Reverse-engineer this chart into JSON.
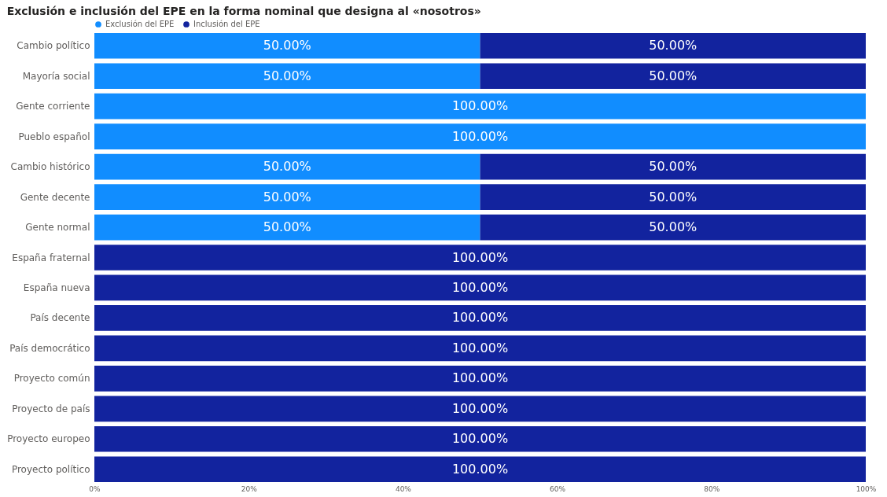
{
  "chart_data": {
    "type": "bar",
    "orientation": "horizontal",
    "stacked": true,
    "title": "Exclusión e inclusión del EPE en la forma nominal que designa al «nosotros»",
    "categories": [
      "Cambio político",
      "Mayoría social",
      "Gente corriente",
      "Pueblo español",
      "Cambio histórico",
      "Gente decente",
      "Gente normal",
      "España fraternal",
      "España nueva",
      "País decente",
      "País democrático",
      "Proyecto común",
      "Proyecto de país",
      "Proyecto europeo",
      "Proyecto político"
    ],
    "series": [
      {
        "name": "Exclusión del EPE",
        "color": "#118dff",
        "values": [
          50,
          50,
          100,
          100,
          50,
          50,
          50,
          null,
          null,
          null,
          null,
          null,
          null,
          null,
          null
        ],
        "value_labels": [
          "50.00%",
          "50.00%",
          "100.00%",
          "100.00%",
          "50.00%",
          "50.00%",
          "50.00%",
          null,
          null,
          null,
          null,
          null,
          null,
          null,
          null
        ]
      },
      {
        "name": "Inclusión del EPE",
        "color": "#12239e",
        "values": [
          50,
          50,
          null,
          null,
          50,
          50,
          50,
          100,
          100,
          100,
          100,
          100,
          100,
          100,
          100
        ],
        "value_labels": [
          "50.00%",
          "50.00%",
          null,
          null,
          "50.00%",
          "50.00%",
          "50.00%",
          "100.00%",
          "100.00%",
          "100.00%",
          "100.00%",
          "100.00%",
          "100.00%",
          "100.00%",
          "100.00%"
        ]
      }
    ],
    "xlim": [
      0,
      100
    ],
    "xticks": [
      {
        "value": 0,
        "label": "0%"
      },
      {
        "value": 20,
        "label": "20%"
      },
      {
        "value": 40,
        "label": "40%"
      },
      {
        "value": 60,
        "label": "60%"
      },
      {
        "value": 80,
        "label": "80%"
      },
      {
        "value": 100,
        "label": "100%"
      }
    ],
    "grid": false,
    "legend": "top left"
  }
}
